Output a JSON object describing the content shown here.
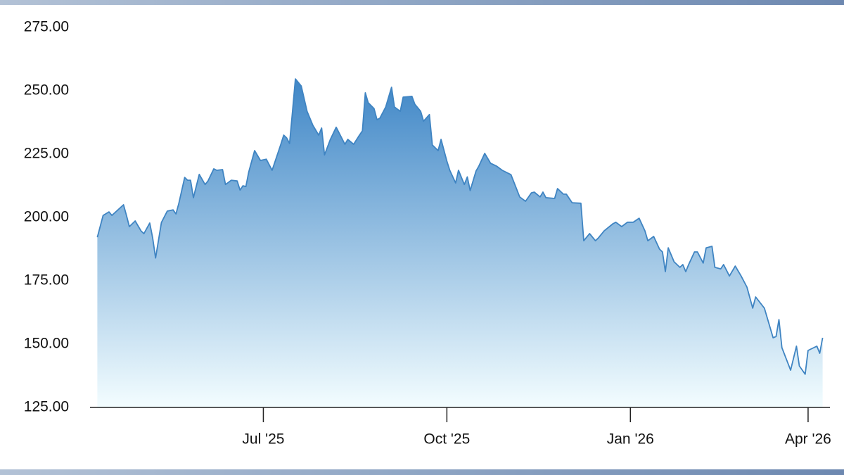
{
  "chart_data": {
    "type": "area",
    "x": [
      0,
      2,
      4,
      5,
      9,
      10,
      11,
      13,
      15,
      16,
      18,
      19,
      20,
      22,
      24,
      26,
      27,
      28,
      30,
      31,
      32,
      33,
      35,
      37,
      38,
      40,
      41,
      43,
      44,
      46,
      48,
      49,
      50,
      51,
      52,
      54,
      56,
      58,
      60,
      63,
      64,
      65,
      66,
      67,
      68,
      70,
      72,
      74,
      76,
      77,
      78,
      80,
      82,
      85,
      86,
      88,
      90,
      91,
      92,
      93,
      95,
      96,
      97,
      99,
      101,
      102,
      104,
      105,
      108,
      109,
      111,
      112,
      114,
      115,
      117,
      118,
      120,
      121,
      123,
      124,
      126,
      127,
      128,
      130,
      131,
      133,
      135,
      137,
      139,
      142,
      145,
      147,
      149,
      150,
      152,
      153,
      154,
      157,
      158,
      160,
      161,
      163,
      166,
      167,
      169,
      171,
      172,
      174,
      177,
      178,
      180,
      182,
      184,
      186,
      188,
      189,
      191,
      193,
      194,
      195,
      196,
      198,
      200,
      201,
      202,
      203,
      205,
      206,
      208,
      209,
      211,
      212,
      214,
      215,
      217,
      219,
      221,
      223,
      225,
      226,
      229,
      232,
      233,
      234,
      235,
      238,
      240,
      241,
      243,
      244,
      247,
      248,
      249
    ],
    "series": [
      {
        "color": "#3f84c2",
        "fill_colors": [
          "#3a83c5",
          "#f3fdff"
        ],
        "values": [
          192.2,
          200.8,
          202.2,
          200.8,
          205,
          200.8,
          196.4,
          198.6,
          194.7,
          193.6,
          197.8,
          192,
          184,
          198,
          202.5,
          203,
          201.4,
          205.6,
          215.8,
          214.7,
          214.7,
          207.8,
          217,
          213,
          214.4,
          219.2,
          218.6,
          218.9,
          213,
          214.7,
          214.4,
          210.8,
          212.5,
          212.2,
          218,
          226.4,
          222.5,
          223,
          218.6,
          228.9,
          232.5,
          231.4,
          229.2,
          241.9,
          254.7,
          251.9,
          241.9,
          236.4,
          232.5,
          235.3,
          224.7,
          230.8,
          235.6,
          228.9,
          230.8,
          228.9,
          232.5,
          234.2,
          249.2,
          245.3,
          243,
          238.6,
          239.2,
          243.6,
          251.4,
          243.6,
          241.9,
          247.5,
          247.8,
          244.7,
          241.9,
          238,
          240.6,
          228.6,
          226.4,
          230.8,
          222.2,
          218.6,
          213.6,
          218.6,
          213,
          216,
          210.6,
          218.3,
          220.3,
          225.3,
          221.4,
          220.3,
          218.6,
          216.9,
          208.1,
          206.4,
          209.7,
          210,
          208.1,
          210,
          207.8,
          207.5,
          211.4,
          209.2,
          209.2,
          205.8,
          205.6,
          190.8,
          193.6,
          190.8,
          191.9,
          194.7,
          197.5,
          198.1,
          196.4,
          198.1,
          198.1,
          199.7,
          194.7,
          190.8,
          192.5,
          187.5,
          186.4,
          178.6,
          188,
          182.5,
          180.3,
          181.4,
          178.6,
          181.4,
          186.4,
          186.4,
          182,
          188,
          188.6,
          180.3,
          179.7,
          181.4,
          176.9,
          180.8,
          176.9,
          172.5,
          164.2,
          168.6,
          164.2,
          152.5,
          153,
          159.7,
          148.6,
          139.7,
          149.2,
          141.4,
          138.1,
          147.5,
          149.2,
          146.4,
          152.5
        ]
      }
    ],
    "xlim": [
      -2.5,
      251.5
    ],
    "xticks": [
      {
        "value": 57,
        "label": "Jul '25"
      },
      {
        "value": 120,
        "label": "Oct '25"
      },
      {
        "value": 183,
        "label": "Jan '26"
      },
      {
        "value": 244,
        "label": "Apr '26"
      }
    ],
    "ylim": [
      125,
      275
    ],
    "yticks": [
      {
        "value": 125,
        "label": "125.00"
      },
      {
        "value": 150,
        "label": "150.00"
      },
      {
        "value": 175,
        "label": "175.00"
      },
      {
        "value": 200,
        "label": "200.00"
      },
      {
        "value": 225,
        "label": "225.00"
      },
      {
        "value": 250,
        "label": "250.00"
      },
      {
        "value": 275,
        "label": "275.00"
      }
    ],
    "grid": false
  }
}
